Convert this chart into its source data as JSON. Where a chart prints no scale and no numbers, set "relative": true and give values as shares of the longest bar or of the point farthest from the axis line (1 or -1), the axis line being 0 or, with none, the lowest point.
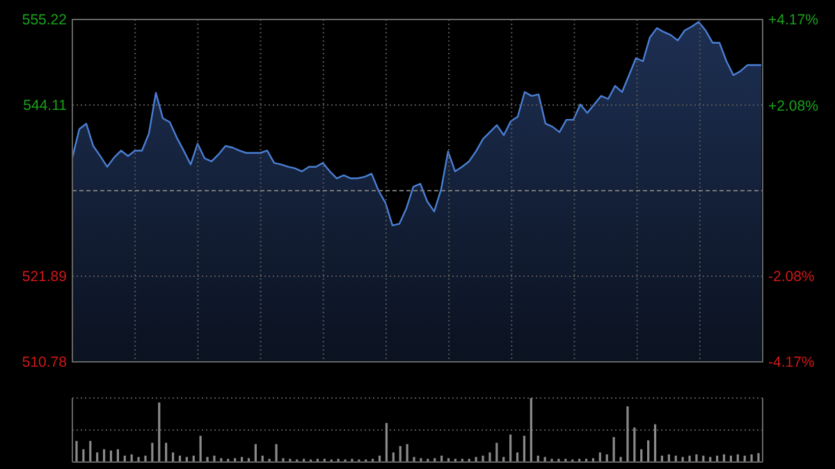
{
  "chart_data": [
    {
      "type": "area",
      "categories": [
        null,
        null,
        null,
        null,
        null,
        null,
        null,
        null,
        null,
        null,
        null,
        null,
        null,
        null,
        null,
        null,
        null,
        null,
        null,
        null,
        null,
        null,
        null,
        null,
        null,
        null,
        null,
        null,
        null,
        null,
        null,
        null,
        null,
        null,
        null,
        null,
        null,
        null,
        null,
        null,
        null,
        null,
        null,
        null,
        null,
        null,
        null,
        null,
        null,
        null,
        null,
        null,
        null,
        null,
        null,
        null,
        null,
        null,
        null,
        null,
        null,
        null,
        null,
        null,
        null,
        null,
        null,
        null,
        null,
        null,
        null,
        null,
        null,
        null,
        null,
        null,
        null,
        null,
        null,
        null,
        null,
        null,
        null,
        null,
        null,
        null,
        null,
        null,
        null,
        null,
        null,
        null,
        null,
        null,
        null,
        null,
        null,
        null,
        null,
        null
      ],
      "series": [
        {
          "color": "#4a7fd4",
          "values": [
            537.3,
            541.0,
            541.7,
            538.8,
            537.5,
            536.1,
            537.3,
            538.2,
            537.5,
            538.2,
            538.2,
            540.4,
            545.7,
            542.4,
            541.9,
            539.9,
            538.2,
            536.4,
            539.1,
            537.2,
            536.8,
            537.7,
            538.8,
            538.6,
            538.2,
            537.9,
            537.9,
            537.9,
            538.2,
            536.6,
            536.4,
            536.1,
            535.9,
            535.5,
            536.1,
            536.1,
            536.6,
            535.5,
            534.6,
            535.0,
            534.6,
            534.6,
            534.8,
            535.2,
            533.0,
            531.4,
            528.5,
            528.7,
            530.7,
            533.5,
            533.9,
            531.6,
            530.3,
            533.2,
            538.1,
            535.5,
            536.1,
            536.8,
            538.1,
            539.7,
            540.6,
            541.5,
            540.2,
            542.0,
            542.6,
            545.8,
            545.3,
            545.5,
            541.7,
            541.3,
            540.6,
            542.2,
            542.2,
            544.2,
            543.1,
            544.2,
            545.3,
            544.9,
            546.6,
            545.8,
            548.0,
            550.2,
            549.8,
            552.9,
            554.1,
            553.6,
            553.2,
            552.5,
            553.8,
            554.3,
            554.9,
            553.8,
            552.2,
            552.2,
            549.8,
            548.0,
            548.5,
            549.3,
            549.3,
            549.3
          ]
        }
      ],
      "ylim": [
        510.78,
        555.22
      ],
      "yticks": [
        510.78,
        521.89,
        544.11,
        555.22
      ],
      "y2lim": [
        -4.17,
        4.17
      ],
      "y2ticks": [
        {
          "value": -4.17,
          "label": "-4.17%"
        },
        {
          "value": -2.08,
          "label": "-2.08%"
        },
        {
          "value": 2.08,
          "label": "+2.08%"
        },
        {
          "value": 4.17,
          "label": "+4.17%"
        }
      ],
      "ref_lines": [
        {
          "axis": "y",
          "value": 533,
          "line_style": "dashed"
        }
      ],
      "grid": true
    },
    {
      "type": "bar",
      "relative": true,
      "ref_lines": [
        {
          "axis": "y",
          "value": 0.5,
          "line_style": "dotted"
        }
      ],
      "color": "#8a8a8a",
      "categories": [
        null,
        null,
        null,
        null,
        null,
        null,
        null,
        null,
        null,
        null,
        null,
        null,
        null,
        null,
        null,
        null,
        null,
        null,
        null,
        null,
        null,
        null,
        null,
        null,
        null,
        null,
        null,
        null,
        null,
        null,
        null,
        null,
        null,
        null,
        null,
        null,
        null,
        null,
        null,
        null,
        null,
        null,
        null,
        null,
        null,
        null,
        null,
        null,
        null,
        null,
        null,
        null,
        null,
        null,
        null,
        null,
        null,
        null,
        null,
        null,
        null,
        null,
        null,
        null,
        null,
        null,
        null,
        null,
        null,
        null,
        null,
        null,
        null,
        null,
        null,
        null,
        null,
        null,
        null,
        null,
        null,
        null,
        null,
        null,
        null,
        null,
        null,
        null,
        null,
        null,
        null,
        null,
        null,
        null,
        null,
        null,
        null,
        null,
        null,
        null
      ],
      "values": [
        0.33,
        0.2,
        0.33,
        0.15,
        0.2,
        0.18,
        0.2,
        0.1,
        0.12,
        0.08,
        0.1,
        0.3,
        0.93,
        0.3,
        0.15,
        0.1,
        0.08,
        0.1,
        0.41,
        0.08,
        0.1,
        0.06,
        0.05,
        0.06,
        0.08,
        0.06,
        0.28,
        0.1,
        0.05,
        0.28,
        0.06,
        0.05,
        0.04,
        0.05,
        0.04,
        0.05,
        0.05,
        0.04,
        0.05,
        0.04,
        0.05,
        0.04,
        0.04,
        0.05,
        0.1,
        0.61,
        0.15,
        0.25,
        0.28,
        0.08,
        0.06,
        0.05,
        0.06,
        0.1,
        0.06,
        0.05,
        0.05,
        0.05,
        0.08,
        0.1,
        0.15,
        0.3,
        0.08,
        0.43,
        0.15,
        0.41,
        1,
        0.1,
        0.08,
        0.05,
        0.05,
        0.05,
        0.04,
        0.05,
        0.05,
        0.06,
        0.15,
        0.12,
        0.39,
        0.08,
        0.87,
        0.54,
        0.2,
        0.34,
        0.59,
        0.1,
        0.12,
        0.1,
        0.08,
        0.1,
        0.12,
        0.1,
        0.08,
        0.1,
        0.12,
        0.1,
        0.12,
        0.1,
        0.12,
        0.14
      ],
      "grid": true
    }
  ]
}
